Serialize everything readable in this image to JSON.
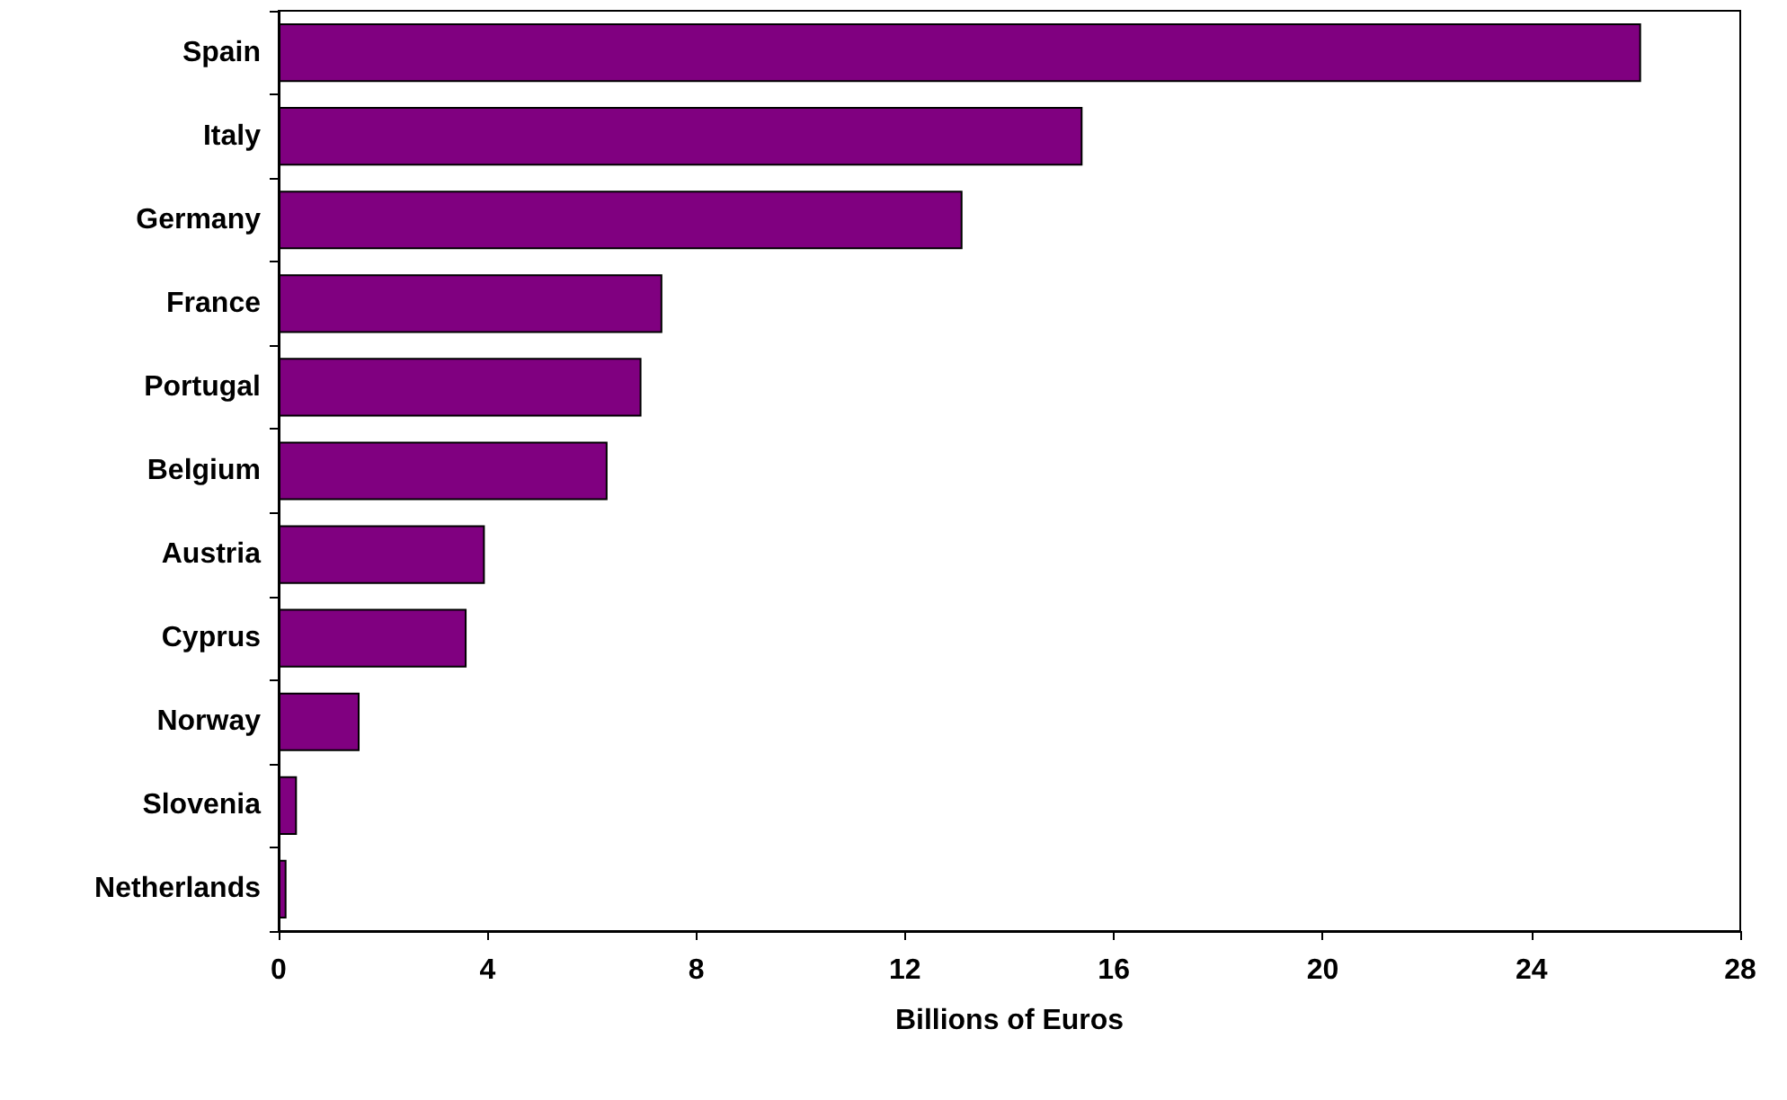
{
  "chart_data": {
    "type": "bar",
    "orientation": "horizontal",
    "xlabel": "Billions of Euros",
    "categories": [
      "Spain",
      "Italy",
      "Germany",
      "France",
      "Portugal",
      "Belgium",
      "Austria",
      "Cyprus",
      "Norway",
      "Slovenia",
      "Netherlands"
    ],
    "values": [
      26.1,
      15.4,
      13.1,
      7.35,
      6.95,
      6.3,
      3.95,
      3.6,
      1.55,
      0.35,
      0.15
    ],
    "color": "#800080",
    "xlim": [
      0,
      28
    ],
    "xticks": [
      0,
      4,
      8,
      12,
      16,
      20,
      24,
      28
    ]
  }
}
